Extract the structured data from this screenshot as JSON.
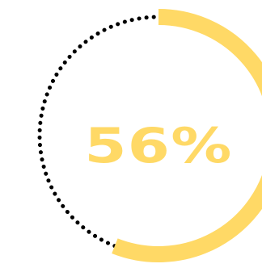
{
  "progress": {
    "label": "56%",
    "value": 0.56
  },
  "colors": {
    "accent": "#FFD966",
    "dots": "#000000",
    "background": "#FFFFFF"
  }
}
